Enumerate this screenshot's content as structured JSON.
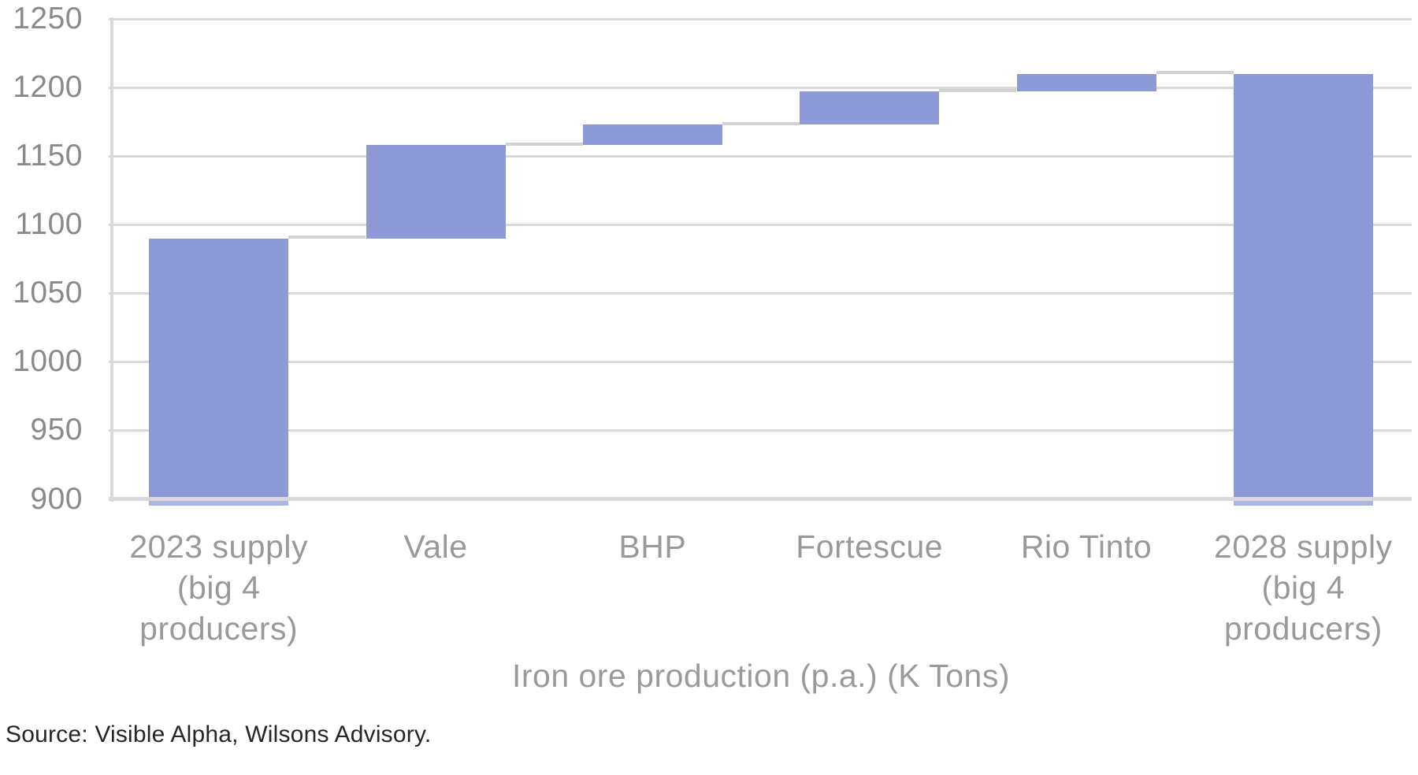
{
  "chart_data": {
    "type": "bar",
    "subtype": "waterfall",
    "title": "",
    "xlabel": "Iron ore production (p.a.) (K Tons)",
    "ylabel": "",
    "categories": [
      "2023 supply (big 4 producers)",
      "Vale",
      "BHP",
      "Fortescue",
      "Rio Tinto",
      "2028 supply (big 4 producers)"
    ],
    "bars": [
      {
        "id": "2023-supply",
        "label_lines": [
          "2023 supply",
          "(big 4",
          "producers)"
        ],
        "type": "total",
        "value": 1090
      },
      {
        "id": "vale",
        "label_lines": [
          "Vale"
        ],
        "type": "delta",
        "delta": 68,
        "cumulative": 1158
      },
      {
        "id": "bhp",
        "label_lines": [
          "BHP"
        ],
        "type": "delta",
        "delta": 15,
        "cumulative": 1173
      },
      {
        "id": "fortescue",
        "label_lines": [
          "Fortescue"
        ],
        "type": "delta",
        "delta": 24,
        "cumulative": 1197
      },
      {
        "id": "rio-tinto",
        "label_lines": [
          "Rio Tinto"
        ],
        "type": "delta",
        "delta": 13,
        "cumulative": 1210
      },
      {
        "id": "2028-supply",
        "label_lines": [
          "2028 supply",
          "(big 4",
          "producers)"
        ],
        "type": "total",
        "value": 1210
      }
    ],
    "y_ticks": [
      900,
      950,
      1000,
      1050,
      1100,
      1150,
      1200,
      1250
    ],
    "ylim": [
      894,
      1250
    ],
    "grid": true,
    "legend": false
  },
  "source_note": "Source: Visible Alpha, Wilsons Advisory.",
  "colors": {
    "bar": "#8e9ad7",
    "grid": "#d9d9d9",
    "axis_line": "#d9d9d9",
    "connector": "#d2d2d2",
    "tick_label": "#8a8a8a",
    "category_label": "#999999",
    "axis_title": "#9a9a9a",
    "source_text": "#262626"
  }
}
